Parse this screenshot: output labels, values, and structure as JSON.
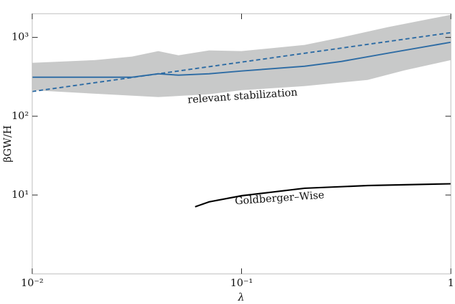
{
  "chart_data": {
    "type": "line",
    "xlabel": "λ",
    "ylabel": "βGW/H",
    "xscale": "log",
    "yscale": "log",
    "xlim": [
      0.01,
      1
    ],
    "ylim": [
      1,
      2000
    ],
    "xticks": [
      {
        "value": 0.01,
        "label": "10⁻²"
      },
      {
        "value": 0.1,
        "label": "10⁻¹"
      },
      1
    ],
    "yticks": [
      {
        "value": 10,
        "label": "10¹"
      },
      {
        "value": 100,
        "label": "10²"
      },
      {
        "value": 1000,
        "label": "10³"
      }
    ],
    "band": {
      "color": "#c8c9c9",
      "x_upper": [
        0.01,
        0.02,
        0.03,
        0.04,
        0.05,
        0.07,
        0.1,
        0.2,
        0.3,
        0.5,
        1
      ],
      "upper": [
        476,
        516,
        571,
        670,
        594,
        684,
        670,
        802,
        1000,
        1350,
        1937
      ],
      "x_lower": [
        0.01,
        0.02,
        0.04,
        0.07,
        0.1,
        0.2,
        0.4,
        0.6,
        1
      ],
      "lower": [
        214,
        193,
        175,
        190,
        214,
        241,
        289,
        382,
        516
      ]
    },
    "series": [
      {
        "color": "#2e6ca4",
        "dash": false,
        "x": [
          0.01,
          0.03,
          0.04,
          0.05,
          0.07,
          0.1,
          0.2,
          0.3,
          0.5,
          1
        ],
        "values": [
          313,
          313,
          346,
          332,
          346,
          375,
          431,
          496,
          631,
          869
        ]
      },
      {
        "color": "#2e6ca4",
        "dash": true,
        "x": [
          0.01,
          0.1,
          1
        ],
        "values": [
          206,
          486,
          1150
        ]
      },
      {
        "color": "#000000",
        "dash": false,
        "x": [
          0.06,
          0.07,
          0.1,
          0.2,
          0.4,
          1
        ],
        "values": [
          7.1,
          8.2,
          9.8,
          12.2,
          13.2,
          13.9
        ]
      }
    ],
    "annotations": [
      {
        "text": "relevant stabilization",
        "color": "#2e6ca4"
      },
      {
        "text": "Goldberger–Wise",
        "color": "#000000"
      }
    ]
  }
}
